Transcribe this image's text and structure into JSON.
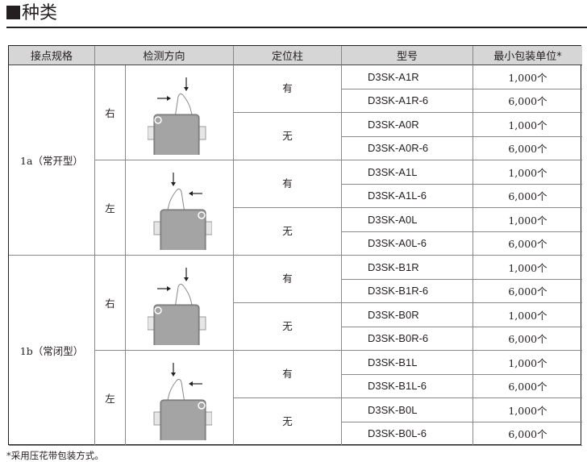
{
  "title": "种类",
  "headers": [
    "接点规格",
    "检测方向",
    "定位柱",
    "型号",
    "最小包装单位*"
  ],
  "contacts": [
    {
      "label": "1a（常开型）",
      "directions": [
        {
          "label": "右",
          "icon": "switch-right-icon",
          "posts": [
            {
              "label": "有",
              "models": [
                {
                  "model": "D3SK-A1R",
                  "qty": "1,000个"
                },
                {
                  "model": "D3SK-A1R-6",
                  "qty": "6,000个"
                }
              ]
            },
            {
              "label": "无",
              "models": [
                {
                  "model": "D3SK-A0R",
                  "qty": "1,000个"
                },
                {
                  "model": "D3SK-A0R-6",
                  "qty": "6,000个"
                }
              ]
            }
          ]
        },
        {
          "label": "左",
          "icon": "switch-left-icon",
          "posts": [
            {
              "label": "有",
              "models": [
                {
                  "model": "D3SK-A1L",
                  "qty": "1,000个"
                },
                {
                  "model": "D3SK-A1L-6",
                  "qty": "6,000个"
                }
              ]
            },
            {
              "label": "无",
              "models": [
                {
                  "model": "D3SK-A0L",
                  "qty": "1,000个"
                },
                {
                  "model": "D3SK-A0L-6",
                  "qty": "6,000个"
                }
              ]
            }
          ]
        }
      ]
    },
    {
      "label": "1b（常闭型）",
      "directions": [
        {
          "label": "右",
          "icon": "switch-right-icon",
          "posts": [
            {
              "label": "有",
              "models": [
                {
                  "model": "D3SK-B1R",
                  "qty": "1,000个"
                },
                {
                  "model": "D3SK-B1R-6",
                  "qty": "6,000个"
                }
              ]
            },
            {
              "label": "无",
              "models": [
                {
                  "model": "D3SK-B0R",
                  "qty": "1,000个"
                },
                {
                  "model": "D3SK-B0R-6",
                  "qty": "6,000个"
                }
              ]
            }
          ]
        },
        {
          "label": "左",
          "icon": "switch-left-icon",
          "posts": [
            {
              "label": "有",
              "models": [
                {
                  "model": "D3SK-B1L",
                  "qty": "1,000个"
                },
                {
                  "model": "D3SK-B1L-6",
                  "qty": "6,000个"
                }
              ]
            },
            {
              "label": "无",
              "models": [
                {
                  "model": "D3SK-B0L",
                  "qty": "1,000个"
                },
                {
                  "model": "D3SK-B0L-6",
                  "qty": "6,000个"
                }
              ]
            }
          ]
        }
      ]
    }
  ],
  "footnote": "*采用压花带包装方式。"
}
